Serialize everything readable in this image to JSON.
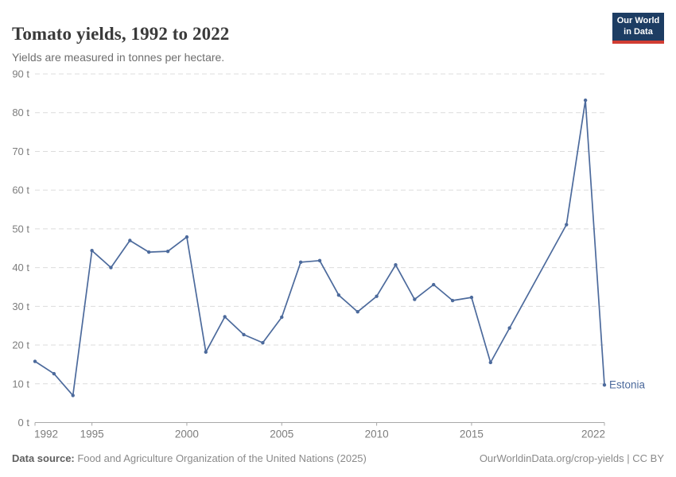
{
  "header": {
    "title": "Tomato yields, 1992 to 2022",
    "subtitle": "Yields are measured in tonnes per hectare.",
    "logo": {
      "line1": "Our World",
      "line2": "in Data"
    }
  },
  "chart_data": {
    "type": "line",
    "title": "Tomato yields, 1992 to 2022",
    "subtitle": "Yields are measured in tonnes per hectare.",
    "unit": "t",
    "ytick_suffix": " t",
    "x": [
      1992,
      1993,
      1994,
      1995,
      1996,
      1997,
      1998,
      1999,
      2000,
      2001,
      2002,
      2003,
      2004,
      2005,
      2006,
      2007,
      2008,
      2009,
      2010,
      2011,
      2012,
      2013,
      2014,
      2015,
      2016,
      2017,
      2018,
      2019,
      2020,
      2021,
      2022
    ],
    "series": [
      {
        "name": "Estonia",
        "color": "#4C6A9C",
        "values": [
          15.8,
          12.6,
          7.0,
          44.4,
          40.0,
          47.0,
          44.0,
          44.2,
          47.9,
          18.2,
          27.3,
          22.7,
          20.6,
          27.2,
          41.4,
          41.8,
          32.9,
          28.6,
          32.6,
          40.7,
          31.8,
          35.6,
          31.5,
          32.3,
          15.5,
          24.4,
          null,
          null,
          51.1,
          83.2,
          9.7
        ]
      }
    ],
    "xticks": [
      1992,
      1995,
      2000,
      2005,
      2010,
      2015,
      2022
    ],
    "yticks": [
      0,
      10,
      20,
      30,
      40,
      50,
      60,
      70,
      80,
      90
    ],
    "xlim": [
      1992,
      2022
    ],
    "ylim": [
      0,
      90
    ],
    "grid": "horizontal-dashed",
    "legend_position": "end-of-line"
  },
  "footer": {
    "source_label": "Data source:",
    "source_text": " Food and Agriculture Organization of the United Nations (2025)",
    "link_text": "OurWorldinData.org/crop-yields",
    "separator": " | ",
    "license_text": "CC BY"
  },
  "colors": {
    "series": "#4C6A9C",
    "gridline": "#dcdcdc",
    "axis_line": "#a8a8a8",
    "tick_label": "#7d7d7d",
    "title": "#3a3a3a",
    "subtitle": "#6e6e6e",
    "logo_bg": "#1d3d63",
    "logo_underline": "#d13d33"
  }
}
